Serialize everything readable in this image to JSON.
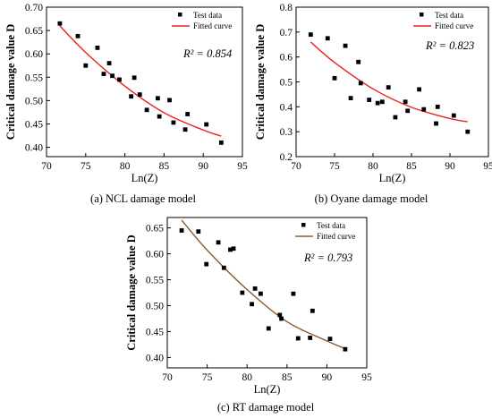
{
  "chart_data": [
    {
      "type": "scatter",
      "caption": "(a) NCL damage model",
      "xlabel": "Ln(Z)",
      "ylabel": "Critical damage value D",
      "xlim": [
        70,
        95
      ],
      "ylim": [
        0.38,
        0.7
      ],
      "xticks": [
        70,
        75,
        80,
        85,
        90,
        95
      ],
      "yticks": [
        0.4,
        0.45,
        0.5,
        0.55,
        0.6,
        0.65,
        0.7
      ],
      "ytick_labels": [
        "0.40",
        "0.45",
        "0.50",
        "0.55",
        "0.60",
        "0.65",
        "0.70"
      ],
      "r2_label": "R² = 0.854",
      "legend": {
        "position": "top-right",
        "scatter_label": "Test data",
        "line_label": "Fitted curve"
      },
      "series": [
        {
          "name": "Test data",
          "kind": "scatter",
          "color": "#000000",
          "points": [
            [
              71.7,
              0.665
            ],
            [
              74.0,
              0.638
            ],
            [
              75.0,
              0.575
            ],
            [
              76.5,
              0.613
            ],
            [
              77.3,
              0.557
            ],
            [
              78.0,
              0.58
            ],
            [
              78.4,
              0.553
            ],
            [
              79.3,
              0.545
            ],
            [
              80.8,
              0.509
            ],
            [
              81.2,
              0.549
            ],
            [
              81.9,
              0.513
            ],
            [
              82.8,
              0.48
            ],
            [
              84.2,
              0.505
            ],
            [
              84.4,
              0.466
            ],
            [
              85.7,
              0.501
            ],
            [
              86.2,
              0.453
            ],
            [
              87.7,
              0.438
            ],
            [
              88.0,
              0.471
            ],
            [
              90.4,
              0.449
            ],
            [
              92.3,
              0.41
            ]
          ]
        },
        {
          "name": "Fitted curve",
          "kind": "line",
          "color": "#e8231e",
          "points": [
            [
              71.7,
              0.66
            ],
            [
              75.0,
              0.603
            ],
            [
              80.0,
              0.531
            ],
            [
              85.0,
              0.474
            ],
            [
              90.0,
              0.437
            ],
            [
              92.3,
              0.424
            ]
          ]
        }
      ]
    },
    {
      "type": "scatter",
      "caption": "(b) Oyane damage model",
      "xlabel": "Ln(Z)",
      "ylabel": "Critical damage value D",
      "xlim": [
        70,
        95
      ],
      "ylim": [
        0.2,
        0.8
      ],
      "xticks": [
        70,
        75,
        80,
        85,
        90,
        95
      ],
      "yticks": [
        0.2,
        0.3,
        0.4,
        0.5,
        0.6,
        0.7,
        0.8
      ],
      "ytick_labels": [
        "0.2",
        "0.3",
        "0.4",
        "0.5",
        "0.6",
        "0.7",
        "0.8"
      ],
      "r2_label": "R² = 0.823",
      "legend": {
        "position": "top-right",
        "scatter_label": "Test data",
        "line_label": "Fitted curve"
      },
      "series": [
        {
          "name": "Test data",
          "kind": "scatter",
          "color": "#000000",
          "points": [
            [
              71.9,
              0.69
            ],
            [
              74.1,
              0.675
            ],
            [
              75.0,
              0.515
            ],
            [
              76.4,
              0.645
            ],
            [
              77.1,
              0.435
            ],
            [
              78.1,
              0.58
            ],
            [
              78.4,
              0.495
            ],
            [
              79.5,
              0.428
            ],
            [
              80.6,
              0.415
            ],
            [
              81.2,
              0.42
            ],
            [
              82.0,
              0.478
            ],
            [
              82.9,
              0.358
            ],
            [
              84.2,
              0.42
            ],
            [
              84.5,
              0.384
            ],
            [
              86.0,
              0.47
            ],
            [
              86.6,
              0.39
            ],
            [
              88.2,
              0.333
            ],
            [
              88.4,
              0.4
            ],
            [
              90.5,
              0.365
            ],
            [
              92.3,
              0.3
            ]
          ]
        },
        {
          "name": "Fitted curve",
          "kind": "line",
          "color": "#e8231e",
          "points": [
            [
              71.9,
              0.66
            ],
            [
              75.0,
              0.578
            ],
            [
              80.0,
              0.472
            ],
            [
              85.0,
              0.398
            ],
            [
              90.0,
              0.353
            ],
            [
              92.3,
              0.34
            ]
          ]
        }
      ]
    },
    {
      "type": "scatter",
      "caption": "(c) RT damage model",
      "xlabel": "Ln(Z)",
      "ylabel": "Critical damage value D",
      "xlim": [
        70,
        95
      ],
      "ylim": [
        0.38,
        0.67
      ],
      "xticks": [
        70,
        75,
        80,
        85,
        90,
        95
      ],
      "yticks": [
        0.4,
        0.45,
        0.5,
        0.55,
        0.6,
        0.65
      ],
      "ytick_labels": [
        "0.40",
        "0.45",
        "0.50",
        "0.55",
        "0.60",
        "0.65"
      ],
      "r2_label": "R² = 0.793",
      "legend": {
        "position": "top-right",
        "scatter_label": "Test data",
        "line_label": "Fitted curve"
      },
      "series": [
        {
          "name": "Test data",
          "kind": "scatter",
          "color": "#000000",
          "points": [
            [
              71.8,
              0.645
            ],
            [
              73.9,
              0.643
            ],
            [
              74.9,
              0.58
            ],
            [
              76.4,
              0.622
            ],
            [
              77.1,
              0.573
            ],
            [
              77.9,
              0.608
            ],
            [
              78.3,
              0.61
            ],
            [
              79.4,
              0.525
            ],
            [
              80.6,
              0.503
            ],
            [
              81.0,
              0.533
            ],
            [
              81.7,
              0.523
            ],
            [
              82.7,
              0.456
            ],
            [
              84.1,
              0.482
            ],
            [
              84.3,
              0.475
            ],
            [
              85.8,
              0.523
            ],
            [
              86.4,
              0.437
            ],
            [
              87.9,
              0.438
            ],
            [
              88.2,
              0.49
            ],
            [
              90.4,
              0.436
            ],
            [
              92.3,
              0.416
            ]
          ]
        },
        {
          "name": "Fitted curve",
          "kind": "line",
          "color": "#8b5a2b",
          "points": [
            [
              71.8,
              0.665
            ],
            [
              75.0,
              0.607
            ],
            [
              80.0,
              0.531
            ],
            [
              85.0,
              0.469
            ],
            [
              90.0,
              0.432
            ],
            [
              92.3,
              0.417
            ]
          ]
        }
      ]
    }
  ]
}
